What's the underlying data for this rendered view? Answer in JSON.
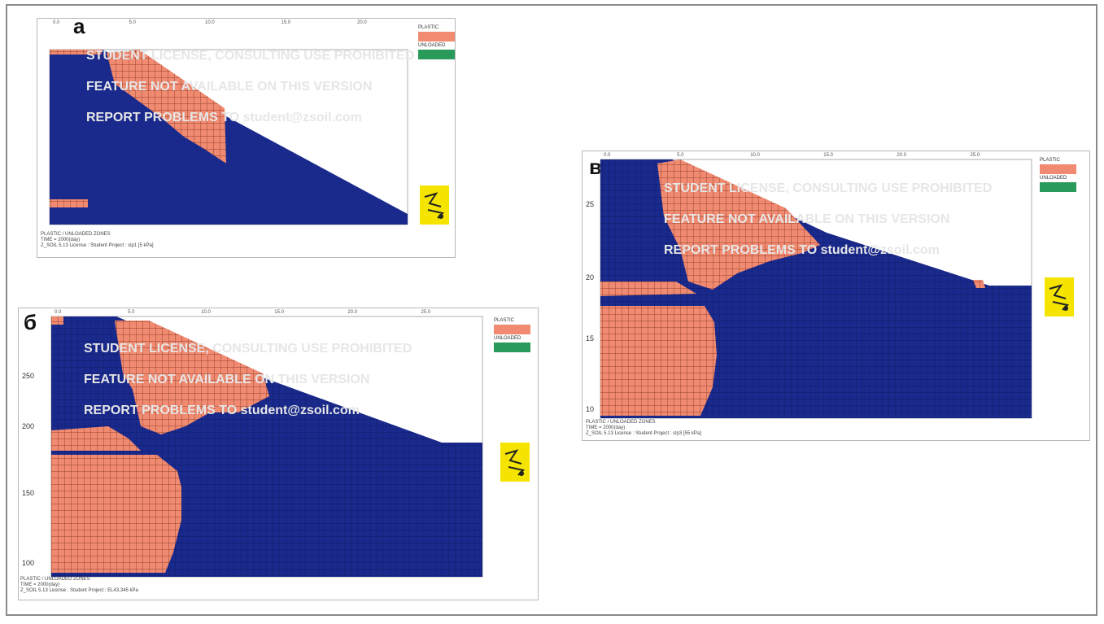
{
  "panels": [
    {
      "label": "а",
      "x_ticks": [
        "0.0",
        "5.0",
        "10.0",
        "15.0",
        "20.0"
      ],
      "y_ticks": [],
      "legend": [
        "PLASTIC",
        "UNLOADED"
      ],
      "footer": [
        "PLASTIC / UNLOADED ZONES",
        "TIME = 2000(day)",
        "Z_SOIL 5.13  License : Student  Project : slp1 [5 kPa]"
      ]
    },
    {
      "label": "б",
      "x_ticks": [
        "0.0",
        "5.0",
        "10.0",
        "15.0",
        "20.0",
        "25.0"
      ],
      "y_ticks": [
        "250",
        "200",
        "150",
        "100"
      ],
      "legend": [
        "PLASTIC",
        "UNLOADED"
      ],
      "footer": [
        "PLASTIC / UNLOADED ZONES",
        "TIME = 2000(day)",
        "Z_SOIL 5.13  License : Student  Project : EL43.345 kPa"
      ]
    },
    {
      "label": "в",
      "x_ticks": [
        "0.0",
        "5.0",
        "10.0",
        "15.0",
        "20.0",
        "25.0"
      ],
      "y_ticks": [
        "25",
        "20",
        "15",
        "10"
      ],
      "legend": [
        "PLASTIC",
        "UNLOADED"
      ],
      "footer": [
        "PLASTIC / UNLOADED ZONES",
        "TIME = 2000(day)",
        "Z_SOIL 5.13  License : Student  Project : slp3 [55 kPa]"
      ]
    }
  ],
  "watermark": [
    "STUDENT LICENSE, CONSULTING USE PROHIBITED",
    "FEATURE NOT AVAILABLE ON THIS VERSION",
    "REPORT PROBLEMS TO student@zsoil.com"
  ],
  "colors": {
    "soil": "#1a2a8c",
    "plastic": "#f08a70",
    "unloaded": "#2a9a5a",
    "grid": "#0d1660",
    "logo": "#f4e400"
  }
}
